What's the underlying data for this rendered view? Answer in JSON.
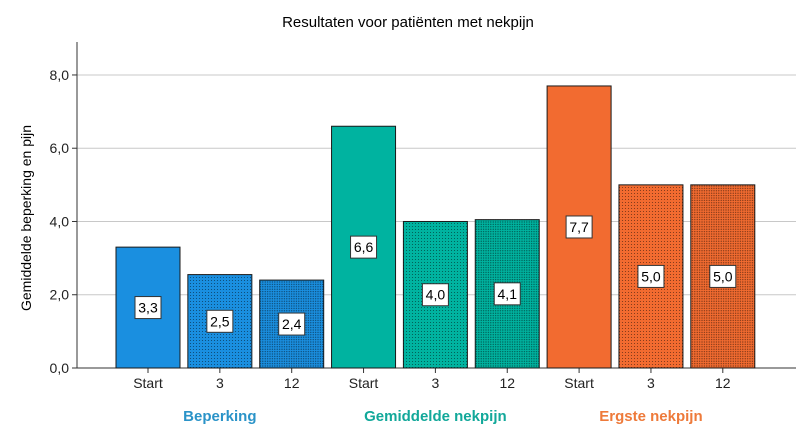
{
  "chart_data": {
    "type": "bar",
    "title": "Resultaten voor patiënten met nekpijn",
    "xlabel": "",
    "ylabel": "Gemiddelde beperking en pijn",
    "ylim": [
      0,
      8.9
    ],
    "yticks": [
      "0,0",
      "2,0",
      "4,0",
      "6,0",
      "8,0"
    ],
    "ytick_values": [
      0,
      2,
      4,
      6,
      8
    ],
    "grid": true,
    "legend": "none",
    "groups": [
      {
        "name": "Beperking",
        "color": "#1a8fe0",
        "label_color": "#2a93c8",
        "categories": [
          "Start",
          "3",
          "12"
        ],
        "values": [
          3.3,
          2.55,
          2.4
        ],
        "value_labels": [
          "3,3",
          "2,5",
          "2,4"
        ]
      },
      {
        "name": "Gemiddelde nekpijn",
        "color": "#00b3a0",
        "label_color": "#12a89a",
        "categories": [
          "Start",
          "3",
          "12"
        ],
        "values": [
          6.6,
          4.0,
          4.05
        ],
        "value_labels": [
          "6,6",
          "4,0",
          "4,1"
        ]
      },
      {
        "name": "Ergste nekpijn",
        "color": "#f26b30",
        "label_color": "#ee7a3a",
        "categories": [
          "Start",
          "3",
          "12"
        ],
        "values": [
          7.7,
          5.0,
          5.0
        ],
        "value_labels": [
          "7,7",
          "5,0",
          "5,0"
        ]
      }
    ]
  }
}
